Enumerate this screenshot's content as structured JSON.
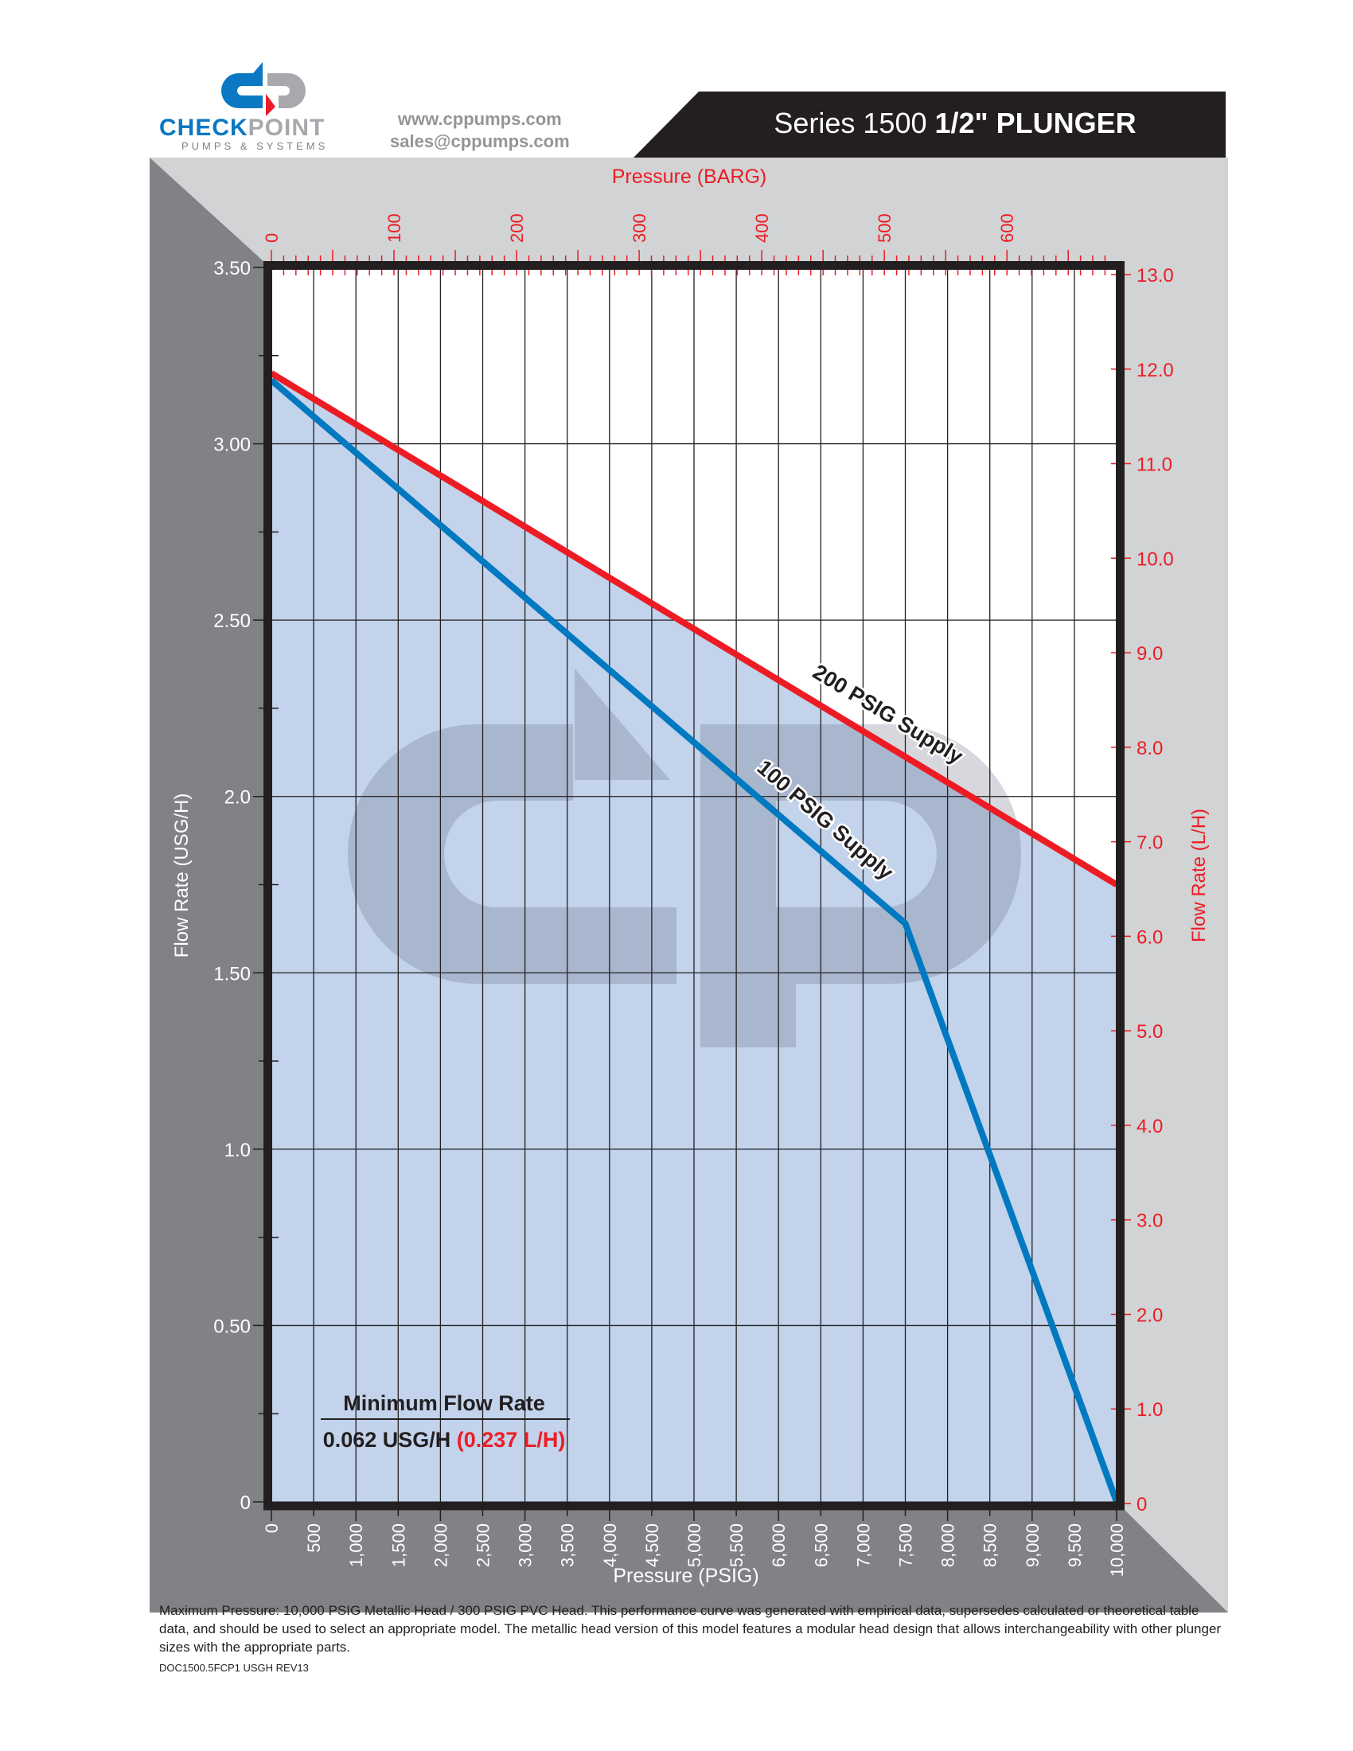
{
  "header": {
    "brand_part1": "CHECK",
    "brand_part2": "POINT",
    "tagline": "PUMPS & SYSTEMS",
    "website": "www.cppumps.com",
    "email": "sales@cppumps.com",
    "title_prefix": "Series 1500",
    "title_bold": "1/2\" PLUNGER"
  },
  "colors": {
    "red": "#ed1c24",
    "blue": "#0079c1",
    "fill": "#c2d3eb",
    "dark_gray": "#808285",
    "light_gray": "#d1d3d4",
    "frame": "#231f20"
  },
  "chart_data": {
    "type": "line",
    "xlabel": "Pressure (PSIG)",
    "x2label": "Pressure (BARG)",
    "ylabel": "Flow Rate (USG/H)",
    "y2label": "Flow Rate (L/H)",
    "xlim": [
      0,
      10000
    ],
    "ylim": [
      0,
      3.5
    ],
    "y2lim": [
      0,
      13
    ],
    "x_ticks": [
      "0",
      "500",
      "1,000",
      "1,500",
      "2,000",
      "2,500",
      "3,000",
      "3,500",
      "4,000",
      "4,500",
      "5,000",
      "5,500",
      "6,000",
      "6,500",
      "7,000",
      "7,500",
      "8,000",
      "8,500",
      "9,000",
      "9,500",
      "10,000"
    ],
    "x2_ticks": [
      "0",
      "100",
      "200",
      "300",
      "400",
      "500",
      "600"
    ],
    "y_ticks": [
      "0",
      "0.50",
      "1.0",
      "1.50",
      "2.0",
      "2.50",
      "3.00",
      "3.50"
    ],
    "y2_ticks": [
      "0",
      "1.0",
      "2.0",
      "3.0",
      "4.0",
      "5.0",
      "6.0",
      "7.0",
      "8.0",
      "9.0",
      "10.0",
      "11.0",
      "12.0",
      "13.0"
    ],
    "grid": true,
    "series": [
      {
        "name": "200 PSIG Supply",
        "color": "#ed1c24",
        "points": [
          [
            0,
            3.2
          ],
          [
            10000,
            1.75
          ]
        ]
      },
      {
        "name": "100 PSIG Supply",
        "color": "#0079c1",
        "points": [
          [
            0,
            3.18
          ],
          [
            7500,
            1.64
          ],
          [
            10000,
            0
          ]
        ]
      }
    ],
    "annotation": {
      "title": "Minimum Flow Rate",
      "value_usg": "0.062 USG/H",
      "value_lh": "(0.237 L/H)"
    }
  },
  "footer": {
    "note": "Maximum Pressure: 10,000 PSIG Metallic Head / 300 PSIG PVC Head. This performance curve was generated with empirical data, supersedes calculated or theoretical table data, and should be used to select an appropriate model. The metallic head version of this model features a modular head design that allows interchangeability with other plunger sizes with the appropriate parts.",
    "doc_code": "DOC1500.5FCP1 USGH REV13"
  }
}
